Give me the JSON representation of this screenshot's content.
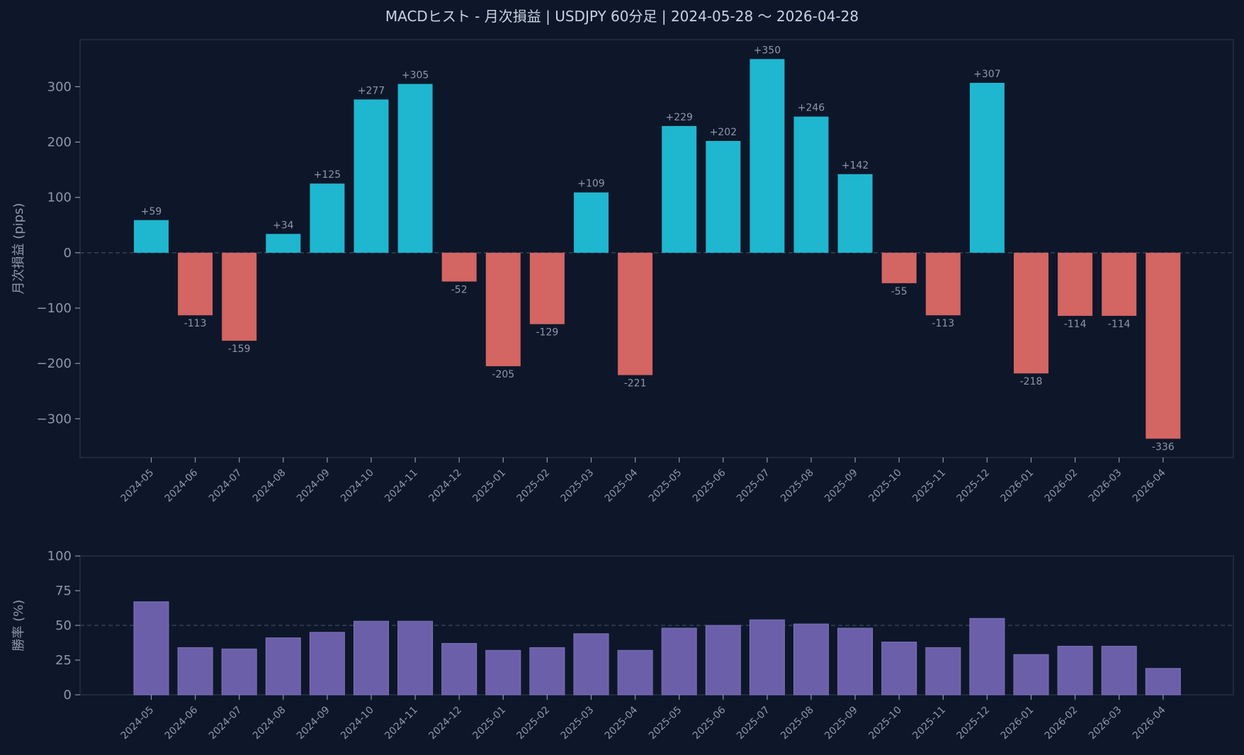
{
  "chart_data": [
    {
      "type": "bar",
      "title": "MACDヒスト - 月次損益 | USDJPY 60分足 | 2024-05-28 〜 2026-04-28",
      "ylabel": "月次損益 (pips)",
      "xlabel": "",
      "ylim": [
        -370,
        385
      ],
      "yticks": [
        300,
        200,
        100,
        0,
        -100,
        -200,
        -300
      ],
      "ytick_labels": [
        "300",
        "200",
        "100",
        "0",
        "−100",
        "−200",
        "−300"
      ],
      "categories": [
        "2024-05",
        "2024-06",
        "2024-07",
        "2024-08",
        "2024-09",
        "2024-10",
        "2024-11",
        "2024-12",
        "2025-01",
        "2025-02",
        "2025-03",
        "2025-04",
        "2025-05",
        "2025-06",
        "2025-07",
        "2025-08",
        "2025-09",
        "2025-10",
        "2025-11",
        "2025-12",
        "2026-01",
        "2026-02",
        "2026-03",
        "2026-04"
      ],
      "values": [
        59,
        -113,
        -159,
        34,
        125,
        277,
        305,
        -52,
        -205,
        -129,
        109,
        -221,
        229,
        202,
        350,
        246,
        142,
        -55,
        -113,
        307,
        -218,
        -114,
        -114,
        -336
      ],
      "value_labels": [
        "+59",
        "-113",
        "-159",
        "+34",
        "+125",
        "+277",
        "+305",
        "-52",
        "-205",
        "-129",
        "+109",
        "-221",
        "+229",
        "+202",
        "+350",
        "+246",
        "+142",
        "-55",
        "-113",
        "+307",
        "-218",
        "-114",
        "-114",
        "-336"
      ],
      "reference_line": 0,
      "colors": {
        "positive": "#1fb6cf",
        "negative": "#d36563"
      }
    },
    {
      "type": "bar",
      "title": "",
      "ylabel": "勝率 (%)",
      "xlabel": "",
      "ylim": [
        0,
        100
      ],
      "yticks": [
        0,
        25,
        50,
        75,
        100
      ],
      "ytick_labels": [
        "0",
        "25",
        "50",
        "75",
        "100"
      ],
      "categories": [
        "2024-05",
        "2024-06",
        "2024-07",
        "2024-08",
        "2024-09",
        "2024-10",
        "2024-11",
        "2024-12",
        "2025-01",
        "2025-02",
        "2025-03",
        "2025-04",
        "2025-05",
        "2025-06",
        "2025-07",
        "2025-08",
        "2025-09",
        "2025-10",
        "2025-11",
        "2025-12",
        "2026-01",
        "2026-02",
        "2026-03",
        "2026-04"
      ],
      "values": [
        67,
        34,
        33,
        41,
        45,
        53,
        53,
        37,
        32,
        34,
        44,
        32,
        48,
        50,
        54,
        51,
        48,
        38,
        34,
        55,
        29,
        35,
        35,
        19
      ],
      "reference_line": 50,
      "colors": {
        "bar": "#6b5faa"
      }
    }
  ],
  "colors": {
    "background": "#0e1729",
    "frame": "#233046",
    "grid_dash": "#3a4861",
    "text": "#8d98ab",
    "title": "#c9d3e0"
  }
}
